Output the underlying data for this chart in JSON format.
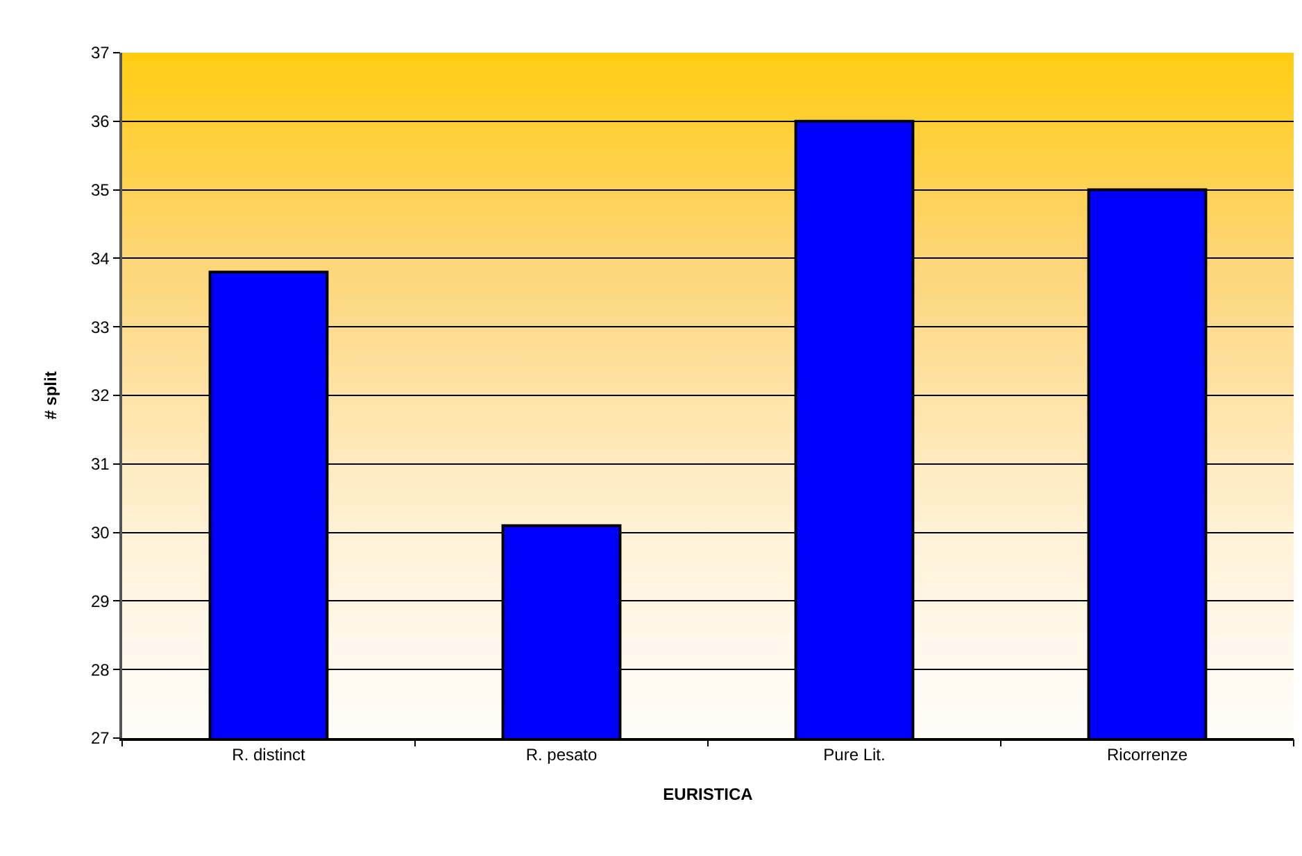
{
  "chart_data": {
    "type": "bar",
    "xlabel": "EURISTICA",
    "ylabel": "# split",
    "categories": [
      "R. distinct",
      "R. pesato",
      "Pure Lit.",
      "Ricorrenze"
    ],
    "values": [
      33.8,
      30.1,
      36,
      35
    ],
    "color": "#0000ff",
    "ylim": [
      27,
      37
    ],
    "yticks": [
      27,
      28,
      29,
      30,
      31,
      32,
      33,
      34,
      35,
      36,
      37
    ],
    "grid": "y",
    "legend": false
  }
}
